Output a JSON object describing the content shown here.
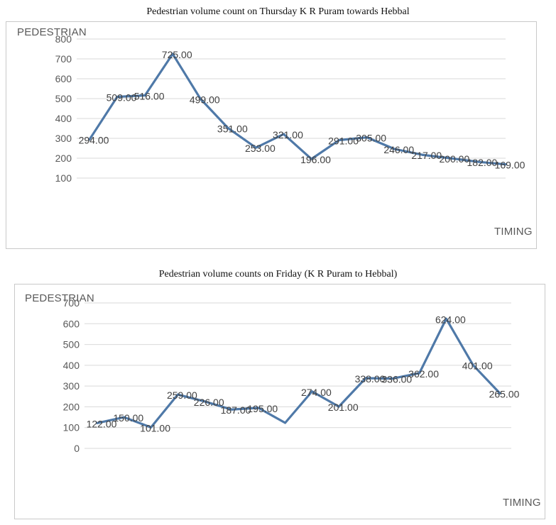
{
  "chart_data": [
    {
      "type": "line",
      "title": "Pedestrian volume count on Thursday K R Puram towards Hebbal",
      "ylabel": "PEDESTRIAN",
      "xlabel": "TIMING",
      "grid": true,
      "ylim": [
        100,
        800
      ],
      "yticks": [
        100,
        200,
        300,
        400,
        500,
        600,
        700,
        800
      ],
      "values": [
        294,
        509,
        516,
        725,
        499,
        351,
        253,
        321,
        196,
        291,
        305,
        246,
        217,
        200,
        182,
        169
      ],
      "labels": [
        "294.00",
        "509.00",
        "516.00",
        "725.00",
        "499.00",
        "351.00",
        "253.00",
        "321.00",
        "196.00",
        "291.00",
        "305.00",
        "246.00",
        "217.00",
        "200.00",
        "182.00",
        "169.00"
      ],
      "color": "#4f79a8"
    },
    {
      "type": "line",
      "title": "Pedestrian volume counts on Friday (K R Puram to Hebbal)",
      "ylabel": "PEDESTRIAN",
      "xlabel": "TIMING",
      "grid": true,
      "ylim": [
        0,
        700
      ],
      "yticks": [
        0,
        100,
        200,
        300,
        400,
        500,
        600,
        700
      ],
      "values": [
        122,
        150,
        101,
        259,
        226,
        187,
        195,
        123,
        274,
        201,
        338,
        336,
        362,
        624,
        401,
        265
      ],
      "labels": [
        "122.00",
        "150.00",
        "101.00",
        "259.00",
        "226.00",
        "187.00",
        "195.00",
        "",
        "274.00",
        "201.00",
        "338.00",
        "336.00",
        "362.00",
        "624.00",
        "401.00",
        "265.00"
      ],
      "color": "#4f79a8"
    }
  ]
}
